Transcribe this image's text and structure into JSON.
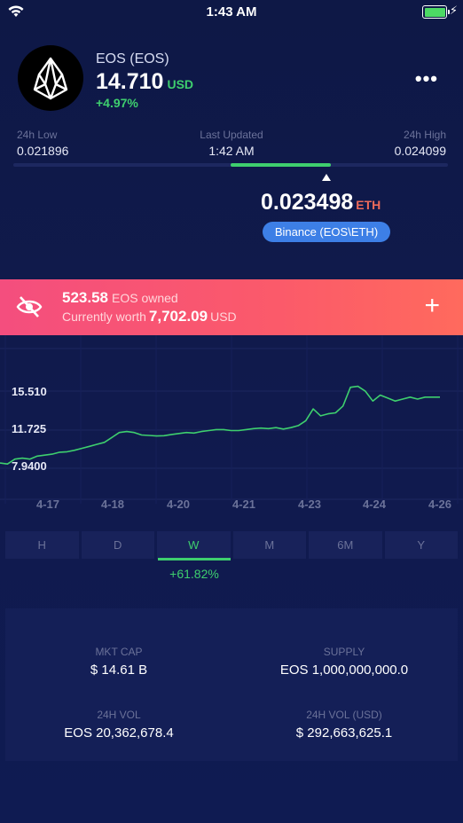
{
  "status_bar": {
    "time": "1:43 AM"
  },
  "coin": {
    "name": "EOS (EOS)",
    "price": "14.710",
    "price_currency": "USD",
    "change": "+4.97%",
    "logo_icon": "eos-logo-icon",
    "menu_icon": "more-dots-icon",
    "menu_label": "•••"
  },
  "range": {
    "low_label": "24h Low",
    "low_value": "0.021896",
    "updated_label": "Last Updated",
    "updated_value": "1:42 AM",
    "high_label": "24h High",
    "high_value": "0.024099",
    "fill_start_fraction": 0.5,
    "fill_end_fraction": 0.73,
    "marker_fraction": 0.72
  },
  "pair": {
    "price": "0.023498",
    "unit": "ETH",
    "exchange_label": "Binance (EOS\\ETH)"
  },
  "holdings": {
    "owned_amount": "523.58",
    "owned_label": "EOS owned",
    "worth_label": "Currently worth",
    "worth_amount": "7,702.09",
    "worth_currency": "USD",
    "add_label": "+",
    "hide_icon": "eye-off-icon",
    "add_icon": "plus-icon",
    "accent_color": "#f9566f"
  },
  "chart_data": {
    "type": "line",
    "y_ticks": [
      "15.510",
      "11.725",
      "7.9400"
    ],
    "y_tick_values": [
      15.51,
      11.725,
      7.94
    ],
    "x_ticks": [
      "4-17",
      "4-18",
      "4-20",
      "4-21",
      "4-23",
      "4-24",
      "4-26"
    ],
    "ylim": [
      7.94,
      15.51
    ],
    "line_color": "#3ecf6e",
    "grid": true,
    "series": [
      {
        "values": [
          8.2,
          8.1,
          8.6,
          8.7,
          8.6,
          8.9,
          9.0,
          9.1,
          9.3,
          9.35,
          9.5,
          9.7,
          9.9,
          10.1,
          10.3,
          10.8,
          11.3,
          11.4,
          11.3,
          11.05,
          11.0,
          10.95,
          10.98,
          11.1,
          11.2,
          11.3,
          11.25,
          11.4,
          11.5,
          11.6,
          11.6,
          11.5,
          11.5,
          11.6,
          11.7,
          11.75,
          11.7,
          11.8,
          11.65,
          11.8,
          12.0,
          12.5,
          13.7,
          13.0,
          13.2,
          13.3,
          14.0,
          15.9,
          16.0,
          15.5,
          14.5,
          15.1,
          14.8,
          14.5,
          14.7,
          14.9,
          14.7,
          14.9,
          14.9,
          14.9
        ]
      }
    ]
  },
  "tabs": [
    {
      "label": "H",
      "active": false
    },
    {
      "label": "D",
      "active": false
    },
    {
      "label": "W",
      "active": true
    },
    {
      "label": "M",
      "active": false
    },
    {
      "label": "6M",
      "active": false
    },
    {
      "label": "Y",
      "active": false
    }
  ],
  "period_change": "+61.82%",
  "stats": {
    "mkt_cap_label": "MKT CAP",
    "mkt_cap_value": "$ 14.61 B",
    "supply_label": "SUPPLY",
    "supply_value": "EOS 1,000,000,000.0",
    "vol_label": "24H VOL",
    "vol_value": "EOS 20,362,678.4",
    "vol_usd_label": "24H VOL (USD)",
    "vol_usd_value": "$ 292,663,625.1"
  }
}
